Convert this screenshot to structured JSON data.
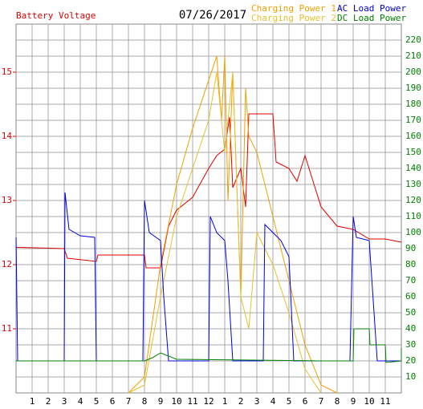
{
  "chart_data": {
    "type": "line",
    "title": "07/26/2017",
    "xlim": [
      0,
      24
    ],
    "xticks": [
      1,
      2,
      3,
      4,
      5,
      6,
      7,
      8,
      9,
      10,
      11,
      12,
      {
        "value": 13,
        "label": "1"
      },
      {
        "value": 14,
        "label": "2"
      },
      {
        "value": 15,
        "label": "3"
      },
      {
        "value": 16,
        "label": "4"
      },
      {
        "value": 17,
        "label": "5"
      },
      {
        "value": 18,
        "label": "6"
      },
      {
        "value": 19,
        "label": "7"
      },
      {
        "value": 20,
        "label": "8"
      },
      {
        "value": 21,
        "label": "9"
      },
      {
        "value": 22,
        "label": "10"
      },
      {
        "value": 23,
        "label": "11"
      }
    ],
    "ylim": [
      10,
      15.75
    ],
    "yticks": [
      11,
      12,
      13,
      14,
      15
    ],
    "y2lim": [
      0,
      230
    ],
    "y2ticks": [
      10,
      20,
      30,
      40,
      50,
      60,
      70,
      80,
      90,
      100,
      110,
      120,
      130,
      140,
      150,
      160,
      170,
      180,
      190,
      200,
      210,
      220
    ],
    "grid": true,
    "series": [
      {
        "name": "Battery Voltage",
        "color": "#dd0000",
        "x": [
          0,
          3,
          3.2,
          5,
          5.1,
          8,
          8.1,
          9,
          9.5,
          10,
          11,
          12,
          12.5,
          13,
          13.3,
          13.5,
          14,
          14.3,
          14.5,
          16,
          16.2,
          17,
          17.5,
          18,
          18.5,
          19,
          20,
          21,
          22,
          23,
          24
        ],
        "values": [
          12.27,
          12.25,
          12.1,
          12.05,
          12.15,
          12.15,
          11.95,
          11.95,
          12.6,
          12.85,
          13.05,
          13.5,
          13.7,
          13.8,
          14.3,
          13.2,
          13.5,
          12.9,
          14.35,
          14.35,
          13.6,
          13.5,
          13.3,
          13.7,
          13.3,
          12.9,
          12.6,
          12.55,
          12.4,
          12.4,
          12.35
        ]
      },
      {
        "name": "Charging Power 1",
        "color": "#f0a000",
        "x": [
          7,
          8,
          9,
          10,
          11,
          12,
          12.5,
          12.8,
          13,
          13.2,
          13.5,
          14,
          14.3,
          14.5,
          15,
          16,
          17,
          18,
          19,
          20
        ],
        "values": [
          0,
          10,
          80,
          130,
          165,
          195,
          210,
          170,
          210,
          120,
          200,
          60,
          190,
          160,
          150,
          110,
          70,
          30,
          5,
          0
        ]
      },
      {
        "name": "Charging Power 2",
        "color": "#e8c030",
        "x": [
          7,
          8,
          9,
          10,
          11,
          12,
          12.5,
          13,
          13.5,
          14,
          14.5,
          15,
          16,
          17,
          18,
          19
        ],
        "values": [
          0,
          5,
          60,
          110,
          140,
          170,
          200,
          150,
          200,
          60,
          40,
          100,
          80,
          50,
          15,
          0
        ]
      },
      {
        "name": "AC Load Power",
        "color": "#0000dd",
        "x": [
          0,
          0.1,
          3,
          3.05,
          3.3,
          4,
          4.9,
          5,
          7.9,
          8,
          8.3,
          9,
          9.2,
          9.5,
          12,
          12.1,
          12.5,
          13,
          13.2,
          13.5,
          15.4,
          15.5,
          16,
          16.5,
          17,
          17.3,
          19,
          20.8,
          21,
          21.2,
          22,
          22.5,
          24
        ],
        "values": [
          97,
          20,
          20,
          125,
          102,
          98,
          97,
          20,
          20,
          120,
          100,
          95,
          60,
          20,
          20,
          110,
          100,
          95,
          70,
          20,
          20,
          105,
          100,
          95,
          85,
          20,
          20,
          20,
          110,
          97,
          95,
          20,
          20
        ]
      },
      {
        "name": "DC Load Power",
        "color": "#008000",
        "x": [
          0,
          8,
          8.5,
          9,
          10,
          19,
          21,
          21.05,
          22,
          22.05,
          23,
          23.05,
          24,
          24
        ],
        "values": [
          20,
          20,
          22,
          25,
          21,
          20,
          20,
          40,
          40,
          30,
          30,
          19,
          20,
          28
        ]
      }
    ]
  }
}
